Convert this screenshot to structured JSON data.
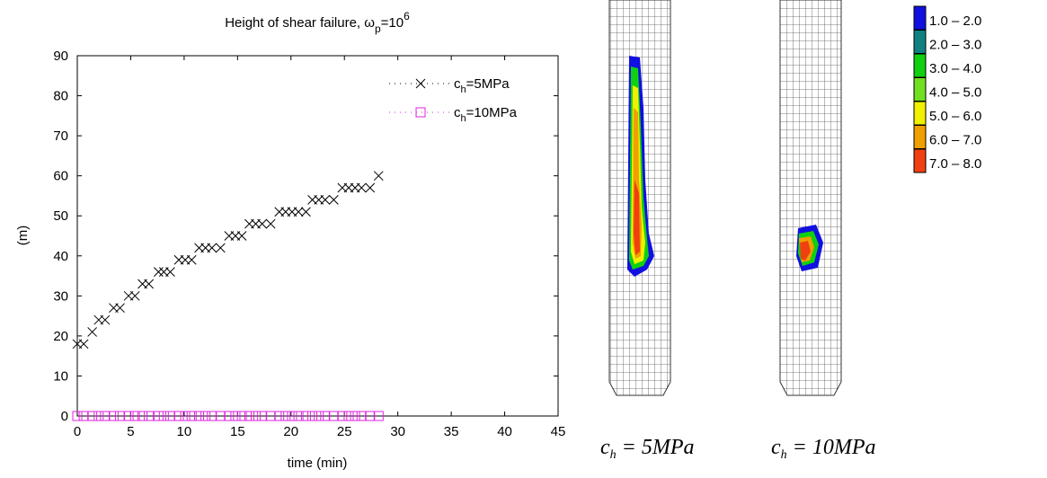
{
  "chart_data": {
    "type": "scatter",
    "title": {
      "text": "Height of shear failure, ω",
      "sub": "p",
      "mid": "=10",
      "sup": "6"
    },
    "xlabel": "time (min)",
    "ylabel": "(m)",
    "xlim": [
      0,
      45
    ],
    "xticks": [
      0,
      5,
      10,
      15,
      20,
      25,
      30,
      35,
      40,
      45
    ],
    "ylim": [
      0,
      90
    ],
    "yticks": [
      0,
      10,
      20,
      30,
      40,
      50,
      60,
      70,
      80,
      90
    ],
    "x": [
      0,
      0.6,
      1.4,
      2,
      2.6,
      3.4,
      4,
      4.8,
      5.4,
      6.1,
      6.7,
      7.6,
      8.1,
      8.7,
      9.5,
      10.1,
      10.7,
      11.4,
      12,
      12.6,
      13.4,
      14.2,
      14.8,
      15.4,
      16.1,
      16.7,
      17.3,
      18.1,
      18.9,
      19.5,
      20.1,
      20.7,
      21.4,
      22,
      22.6,
      23.2,
      24,
      24.8,
      25.4,
      26,
      26.6,
      27.4,
      28.2
    ],
    "series": [
      {
        "name": "c",
        "name_sub": "h",
        "name_rest": "=5MPa",
        "color": "#000000",
        "marker": "x",
        "values": [
          18,
          18,
          21,
          24,
          24,
          27,
          27,
          30,
          30,
          33,
          33,
          36,
          36,
          36,
          39,
          39,
          39,
          42,
          42,
          42,
          42,
          45,
          45,
          45,
          48,
          48,
          48,
          48,
          51,
          51,
          51,
          51,
          51,
          54,
          54,
          54,
          54,
          57,
          57,
          57,
          57,
          57,
          60
        ]
      },
      {
        "name": "c",
        "name_sub": "h",
        "name_rest": "=10MPa",
        "color": "#e020e0",
        "marker": "square",
        "values": [
          0,
          0,
          0,
          0,
          0,
          0,
          0,
          0,
          0,
          0,
          0,
          0,
          0,
          0,
          0,
          0,
          0,
          0,
          0,
          0,
          0,
          0,
          0,
          0,
          0,
          0,
          0,
          0,
          0,
          0,
          0,
          0,
          0,
          0,
          0,
          0,
          0,
          0,
          0,
          0,
          0,
          0,
          0
        ]
      }
    ]
  },
  "contour_legend": [
    {
      "label": "1.0 – 2.0",
      "color": "#1010e0"
    },
    {
      "label": "2.0 – 3.0",
      "color": "#108080"
    },
    {
      "label": "3.0 – 4.0",
      "color": "#10d010"
    },
    {
      "label": "4.0 – 5.0",
      "color": "#70e020"
    },
    {
      "label": "5.0 – 6.0",
      "color": "#f0f000"
    },
    {
      "label": "6.0 – 7.0",
      "color": "#f0a000"
    },
    {
      "label": "7.0 – 8.0",
      "color": "#f04010"
    }
  ],
  "mesh_labels": [
    {
      "c": "c",
      "sub": "h",
      "rest": " = 5MPa"
    },
    {
      "c": "c",
      "sub": "h",
      "rest": " = 10MPa"
    }
  ]
}
